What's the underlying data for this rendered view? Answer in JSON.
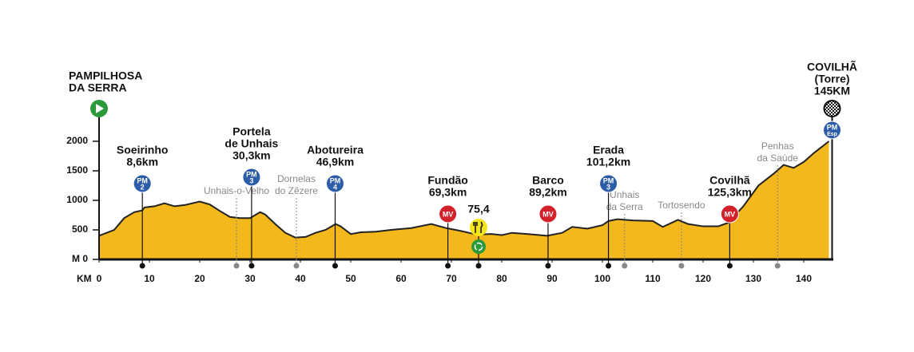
{
  "chart_data": {
    "type": "area",
    "x": [
      0,
      3,
      5,
      7,
      8.6,
      9,
      11,
      13,
      15,
      17,
      20,
      22,
      24,
      26,
      28,
      30,
      31,
      32,
      33,
      35,
      37,
      39,
      41,
      43,
      45,
      47,
      48,
      50,
      52,
      55,
      58,
      62,
      66,
      69,
      72,
      75,
      78,
      80,
      82,
      85,
      89,
      92,
      94,
      97,
      100,
      101.2,
      103,
      106,
      110,
      112,
      115,
      117,
      120,
      123,
      125,
      128,
      131,
      134,
      136,
      138,
      140,
      142,
      145
    ],
    "values": [
      400,
      500,
      700,
      800,
      830,
      880,
      900,
      950,
      900,
      920,
      980,
      930,
      820,
      720,
      700,
      700,
      750,
      800,
      760,
      600,
      450,
      370,
      380,
      450,
      500,
      600,
      560,
      430,
      460,
      470,
      500,
      530,
      600,
      530,
      480,
      420,
      430,
      410,
      450,
      430,
      400,
      450,
      550,
      520,
      580,
      650,
      680,
      660,
      650,
      550,
      670,
      600,
      560,
      560,
      620,
      900,
      1250,
      1450,
      1600,
      1550,
      1650,
      1800,
      2000
    ],
    "color": "#f2b81c",
    "xlim": [
      0,
      145
    ],
    "xticks": [
      0,
      10,
      20,
      30,
      40,
      50,
      60,
      70,
      80,
      90,
      100,
      110,
      120,
      130,
      140
    ],
    "ylim": [
      0,
      2000
    ],
    "yticks": [
      {
        "value": 0,
        "label": "M 0"
      },
      500,
      1000,
      1500,
      2000
    ],
    "x_label": "KM",
    "start": {
      "km": 0,
      "label": [
        "PAMPILHOSA",
        "DA SERRA"
      ]
    },
    "finish": {
      "km": 145,
      "label": [
        "COVILHÃ",
        "(Torre)",
        "145KM"
      ],
      "badge": [
        "PM",
        "Esp"
      ]
    },
    "points": [
      {
        "km": 8.6,
        "label": [
          "Soeirinho",
          "8,6km"
        ],
        "badge": [
          "PM",
          "2"
        ]
      },
      {
        "km": 30.3,
        "label": [
          "Portela",
          "de Unhais",
          "30,3km"
        ],
        "badge": [
          "PM",
          "3"
        ]
      },
      {
        "km": 46.9,
        "label": [
          "Abotureira",
          "46,9km"
        ],
        "badge": [
          "PM",
          "4"
        ]
      },
      {
        "km": 69.3,
        "label": [
          "Fundão",
          "69,3km"
        ],
        "badge": [
          "MV"
        ]
      },
      {
        "km": 89.2,
        "label": [
          "Barco",
          "89,2km"
        ],
        "badge": [
          "MV"
        ]
      },
      {
        "km": 101.2,
        "label": [
          "Erada",
          "101,2km"
        ],
        "badge": [
          "PM",
          "3"
        ]
      },
      {
        "km": 125.3,
        "label": [
          "Covilhã",
          "125,3km"
        ],
        "badge": [
          "MV"
        ]
      }
    ],
    "feed": {
      "km": 75.4,
      "label": "75,4"
    },
    "towns": [
      {
        "km": 27.3,
        "label": [
          "Unhais-o-Velho"
        ]
      },
      {
        "km": 39.2,
        "label": [
          "Dornelas",
          "do Zêzere"
        ]
      },
      {
        "km": 104.4,
        "label": [
          "Unhais",
          "da Serra"
        ]
      },
      {
        "km": 115.7,
        "label": [
          "Tortosendo"
        ]
      },
      {
        "km": 134.8,
        "label": [
          "Penhas",
          "da Saúde"
        ]
      }
    ]
  }
}
